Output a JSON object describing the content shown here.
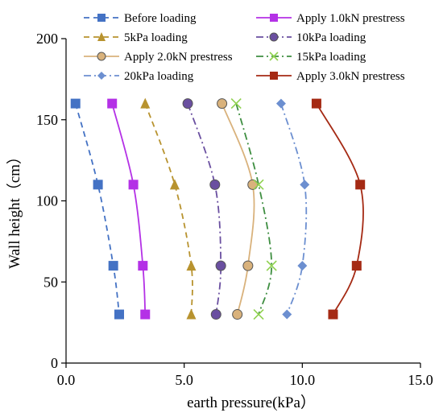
{
  "chart_data": {
    "type": "scatter",
    "xlabel": "earth pressure(kPa）",
    "ylabel": "Wall height（cm）",
    "xlim": [
      0,
      15
    ],
    "ylim": [
      0,
      200
    ],
    "xticks": [
      "0.0",
      "5.0",
      "10.0",
      "15.0"
    ],
    "yticks": [
      "0",
      "50",
      "100",
      "150",
      "200"
    ],
    "grid": false,
    "legend_position": "top",
    "series": [
      {
        "name": "Before loading",
        "color": "#4472C4",
        "marker": "square",
        "dash": "dash",
        "points": [
          {
            "x": 0.4,
            "y": 160
          },
          {
            "x": 1.35,
            "y": 110
          },
          {
            "x": 2.0,
            "y": 60
          },
          {
            "x": 2.25,
            "y": 30
          }
        ]
      },
      {
        "name": "Apply 1.0kN prestress",
        "color": "#B431E6",
        "marker": "square",
        "dash": "solid",
        "points": [
          {
            "x": 1.95,
            "y": 160
          },
          {
            "x": 2.85,
            "y": 110
          },
          {
            "x": 3.25,
            "y": 60
          },
          {
            "x": 3.35,
            "y": 30
          }
        ]
      },
      {
        "name": "5kPa loading",
        "color": "#B8932F",
        "marker": "triangle",
        "dash": "dash",
        "points": [
          {
            "x": 3.35,
            "y": 160
          },
          {
            "x": 4.6,
            "y": 110
          },
          {
            "x": 5.3,
            "y": 60
          },
          {
            "x": 5.3,
            "y": 30
          }
        ]
      },
      {
        "name": "10kPa loading",
        "color": "#6A4FA0",
        "marker": "circle",
        "dash": "dashdot",
        "points": [
          {
            "x": 5.15,
            "y": 160
          },
          {
            "x": 6.3,
            "y": 110
          },
          {
            "x": 6.55,
            "y": 60
          },
          {
            "x": 6.35,
            "y": 30
          }
        ]
      },
      {
        "name": "Apply 2.0kN prestress",
        "color": "#D9B27C",
        "marker": "circle",
        "dash": "solid",
        "points": [
          {
            "x": 6.6,
            "y": 160
          },
          {
            "x": 7.9,
            "y": 110
          },
          {
            "x": 7.7,
            "y": 60
          },
          {
            "x": 7.25,
            "y": 30
          }
        ]
      },
      {
        "name": "15kPa loading",
        "color": "#3E8E41",
        "marker": "x",
        "dash": "dashdot",
        "points": [
          {
            "x": 7.2,
            "y": 160
          },
          {
            "x": 8.15,
            "y": 110
          },
          {
            "x": 8.7,
            "y": 60
          },
          {
            "x": 8.15,
            "y": 30
          }
        ]
      },
      {
        "name": "20kPa loading",
        "color": "#6C8FD0",
        "marker": "diamond",
        "dash": "dashdot",
        "points": [
          {
            "x": 9.1,
            "y": 160
          },
          {
            "x": 10.1,
            "y": 110
          },
          {
            "x": 10.0,
            "y": 60
          },
          {
            "x": 9.35,
            "y": 30
          }
        ]
      },
      {
        "name": "Apply 3.0kN prestress",
        "color": "#A52A14",
        "marker": "square",
        "dash": "solid",
        "points": [
          {
            "x": 10.6,
            "y": 160
          },
          {
            "x": 12.45,
            "y": 110
          },
          {
            "x": 12.3,
            "y": 60
          },
          {
            "x": 11.3,
            "y": 30
          }
        ]
      }
    ]
  }
}
